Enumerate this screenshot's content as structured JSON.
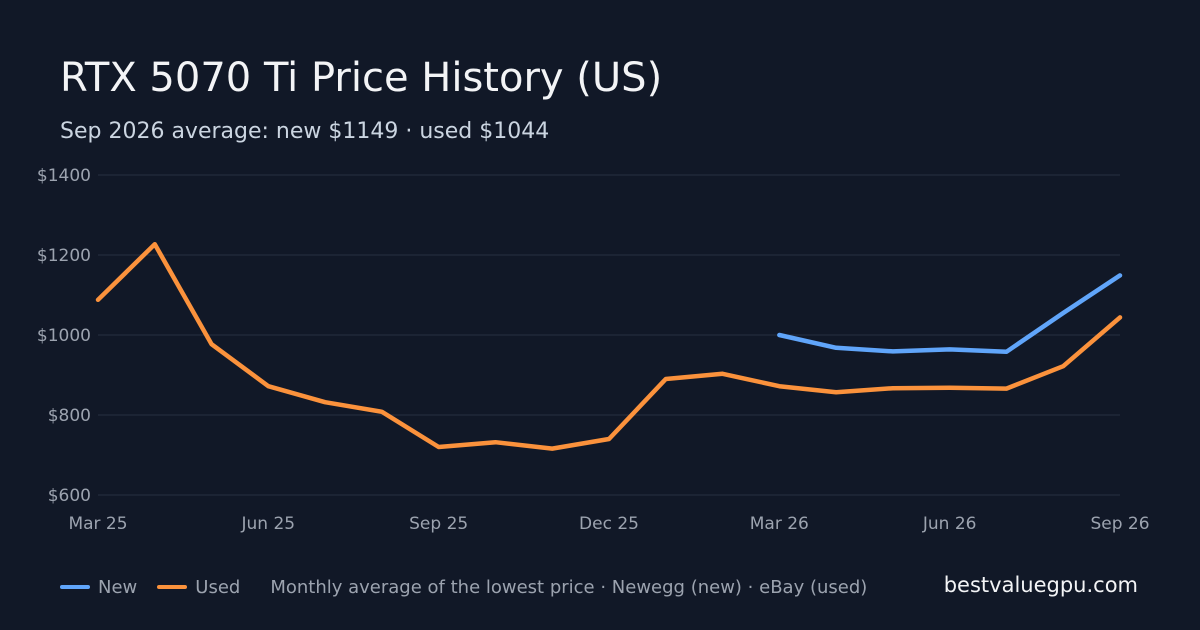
{
  "header": {
    "title": "RTX 5070 Ti Price History (US)",
    "subtitle": "Sep 2026 average: new $1149 · used $1044"
  },
  "footer": {
    "note": "Monthly average of the lowest price · Newegg (new) · eBay (used)",
    "brand": "bestvaluegpu.com"
  },
  "colors": {
    "background": "#111827",
    "grid": "#263042",
    "new": "#60a5fa",
    "used": "#fb923c"
  },
  "chart_data": {
    "type": "line",
    "x": [
      "2025-03",
      "2025-04",
      "2025-05",
      "2025-06",
      "2025-07",
      "2025-08",
      "2025-09",
      "2025-10",
      "2025-11",
      "2025-12",
      "2026-01",
      "2026-02",
      "2026-03",
      "2026-04",
      "2026-05",
      "2026-06",
      "2026-07",
      "2026-08",
      "2026-09"
    ],
    "x_tick_labels": [
      "Mar 25",
      "Jun 25",
      "Sep 25",
      "Dec 25",
      "Mar 26",
      "Jun 26",
      "Sep 26"
    ],
    "x_tick_indices": [
      0,
      3,
      6,
      9,
      12,
      15,
      18
    ],
    "y_ticks": [
      600,
      800,
      1000,
      1200,
      1400
    ],
    "y_tick_labels": [
      "$600",
      "$800",
      "$1000",
      "$1200",
      "$1400"
    ],
    "ylim": [
      600,
      1400
    ],
    "grid": true,
    "legend_position": "bottom-left",
    "series": [
      {
        "name": "New",
        "color": "#60a5fa",
        "values": [
          null,
          null,
          null,
          null,
          null,
          null,
          null,
          null,
          null,
          null,
          null,
          null,
          1000,
          968,
          959,
          964,
          958,
          1055,
          1149
        ]
      },
      {
        "name": "Used",
        "color": "#fb923c",
        "values": [
          1088,
          1227,
          977,
          872,
          832,
          808,
          720,
          732,
          716,
          740,
          890,
          903,
          872,
          857,
          867,
          868,
          866,
          922,
          1044
        ]
      }
    ]
  }
}
